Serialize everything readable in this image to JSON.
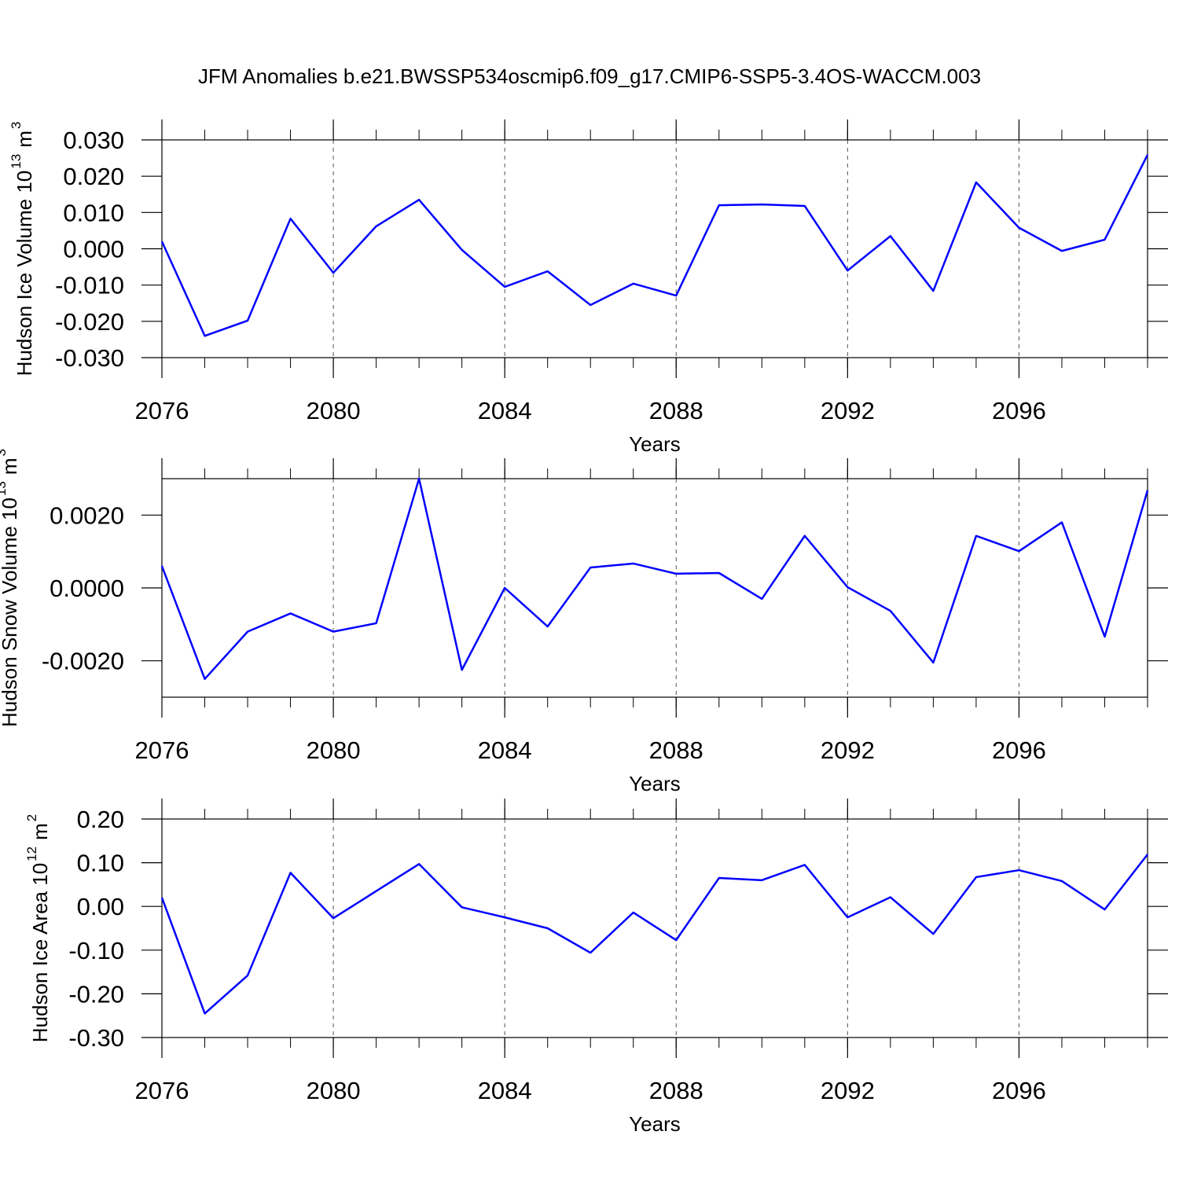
{
  "chart_data": [
    {
      "type": "line",
      "title": "JFM Anomalies b.e21.BWSSP534oscmip6.f09_g17.CMIP6-SSP5-3.4OS-WACCM.003",
      "ylabel": [
        "Hudson Ice Volume 10",
        "13",
        "m",
        "3"
      ],
      "xlabel": "Years",
      "x": [
        2076,
        2077,
        2078,
        2079,
        2080,
        2081,
        2082,
        2083,
        2084,
        2085,
        2086,
        2087,
        2088,
        2089,
        2090,
        2091,
        2092,
        2093,
        2094,
        2095,
        2096,
        2097,
        2098,
        2099
      ],
      "series": [
        {
          "color": "#0000ff",
          "values": [
            0.002,
            -0.024,
            -0.0198,
            0.0083,
            -0.0066,
            0.0062,
            0.0135,
            -0.0003,
            -0.0105,
            -0.0062,
            -0.0155,
            -0.0096,
            -0.0129,
            0.012,
            0.0122,
            0.0118,
            -0.006,
            0.0035,
            -0.0116,
            0.0183,
            0.0058,
            -0.0006,
            0.0025,
            0.0259
          ]
        }
      ],
      "xlim": [
        2076,
        2099
      ],
      "xticks": [
        2076,
        2080,
        2084,
        2088,
        2092,
        2096
      ],
      "ylim": [
        -0.03,
        0.03
      ],
      "yticks": [
        {
          "value": -0.03,
          "label": "-0.030"
        },
        {
          "value": -0.02,
          "label": "-0.020"
        },
        {
          "value": -0.01,
          "label": "-0.010"
        },
        {
          "value": 0,
          "label": "0.000"
        },
        {
          "value": 0.01,
          "label": "0.010"
        },
        {
          "value": 0.02,
          "label": "0.020"
        },
        {
          "value": 0.03,
          "label": "0.030"
        }
      ],
      "grid": true
    },
    {
      "type": "line",
      "ylabel": [
        "Hudson Snow Volume 10",
        "13",
        "m",
        "3"
      ],
      "xlabel": "Years",
      "x": [
        2076,
        2077,
        2078,
        2079,
        2080,
        2081,
        2082,
        2083,
        2084,
        2085,
        2086,
        2087,
        2088,
        2089,
        2090,
        2091,
        2092,
        2093,
        2094,
        2095,
        2096,
        2097,
        2098,
        2099
      ],
      "series": [
        {
          "color": "#0000ff",
          "values": [
            0.0006,
            -0.0025,
            -0.0012,
            -0.0007,
            -0.0012,
            -0.00097,
            0.003,
            -0.00225,
            0.0,
            -0.00106,
            0.00056,
            0.00067,
            0.00039,
            0.00041,
            -0.0003,
            0.00143,
            2e-05,
            -0.00063,
            -0.00205,
            0.00143,
            0.00101,
            0.0018,
            -0.00134,
            0.00268
          ]
        }
      ],
      "xlim": [
        2076,
        2099
      ],
      "xticks": [
        2076,
        2080,
        2084,
        2088,
        2092,
        2096
      ],
      "ylim": [
        -0.003,
        0.003
      ],
      "yticks": [
        {
          "value": -0.002,
          "label": "-0.0020"
        },
        {
          "value": 0,
          "label": "0.0000"
        },
        {
          "value": 0.002,
          "label": "0.0020"
        }
      ],
      "grid": true
    },
    {
      "type": "line",
      "ylabel": [
        "Hudson Ice Area 10",
        "12",
        "m",
        "2"
      ],
      "xlabel": "Years",
      "x": [
        2076,
        2077,
        2078,
        2079,
        2080,
        2081,
        2082,
        2083,
        2084,
        2085,
        2086,
        2087,
        2088,
        2089,
        2090,
        2091,
        2092,
        2093,
        2094,
        2095,
        2096,
        2097,
        2098,
        2099
      ],
      "series": [
        {
          "color": "#0000ff",
          "values": [
            0.02,
            -0.245,
            -0.158,
            0.077,
            -0.027,
            0.035,
            0.097,
            -0.002,
            -0.025,
            -0.05,
            -0.106,
            -0.014,
            -0.077,
            0.065,
            0.06,
            0.095,
            -0.025,
            0.021,
            -0.063,
            0.067,
            0.083,
            0.058,
            -0.007,
            0.119
          ]
        }
      ],
      "xlim": [
        2076,
        2099
      ],
      "xticks": [
        2076,
        2080,
        2084,
        2088,
        2092,
        2096
      ],
      "ylim": [
        -0.3,
        0.2
      ],
      "yticks": [
        {
          "value": -0.3,
          "label": "-0.30"
        },
        {
          "value": -0.2,
          "label": "-0.20"
        },
        {
          "value": -0.1,
          "label": "-0.10"
        },
        {
          "value": 0,
          "label": "0.00"
        },
        {
          "value": 0.1,
          "label": "0.10"
        },
        {
          "value": 0.2,
          "label": "0.20"
        }
      ],
      "grid": true
    }
  ]
}
